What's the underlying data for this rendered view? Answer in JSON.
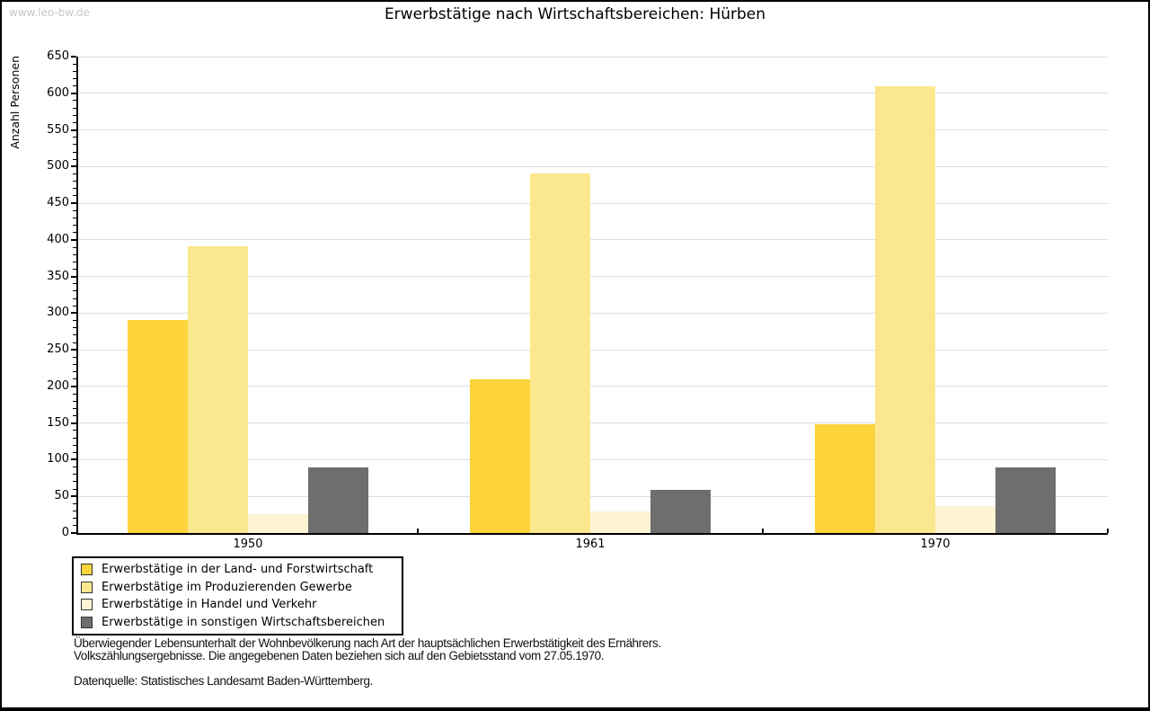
{
  "watermark": "www.leo-bw.de",
  "title": "Erwerbstätige nach Wirtschaftsbereichen: Hürben",
  "chart_data": {
    "type": "bar",
    "title": "Erwerbstätige nach Wirtschaftsbereichen: Hürben",
    "xlabel": "",
    "ylabel": "Anzahl Personen",
    "categories": [
      "1950",
      "1961",
      "1970"
    ],
    "series": [
      {
        "name": "Erwerbstätige in der Land- und Forstwirtschaft",
        "color": "#FCD33B",
        "values": [
          291,
          210,
          148
        ]
      },
      {
        "name": "Erwerbstätige im Produzierenden Gewerbe",
        "color": "#FBE88E",
        "values": [
          391,
          491,
          610
        ]
      },
      {
        "name": "Erwerbstätige in Handel und Verkehr",
        "color": "#FCF4D2",
        "values": [
          26,
          30,
          37
        ]
      },
      {
        "name": "Erwerbstätige in sonstigen Wirtschaftsbereichen",
        "color": "#6E6E6E",
        "values": [
          89,
          59,
          90
        ]
      }
    ],
    "ylim": [
      0,
      650
    ],
    "ytick_step": 50,
    "yminor_step": 10,
    "grid": true,
    "legend_position": "bottom-left"
  },
  "footnotes": {
    "line1": "Überwiegender Lebensunterhalt der Wohnbevölkerung nach Art der hauptsächlichen Erwerbstätigkeit des Ernährers.",
    "line2": "Volkszählungsergebnisse. Die angegebenen Daten beziehen sich auf den Gebietsstand vom 27.05.1970.",
    "source": "Datenquelle: Statistisches Landesamt Baden-Württemberg."
  },
  "colors": {
    "background": "#FFFFFF",
    "grid": "#DEDEDE",
    "axis": "#000000",
    "watermark": "#C6C6C6"
  }
}
